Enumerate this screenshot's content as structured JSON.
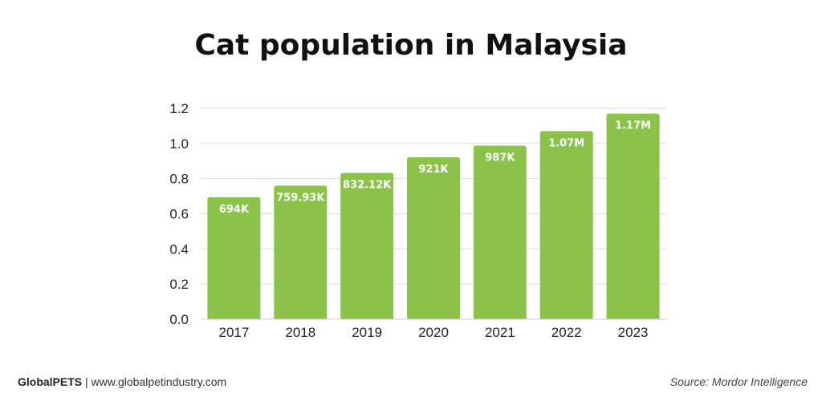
{
  "title": "Cat population in Malaysia",
  "footer": {
    "brand": "GlobalPETS",
    "separator": " | ",
    "website": "www.globalpetindustry.com",
    "source": "Source: Mordor Intelligence"
  },
  "colors": {
    "bar": "#8bc34a",
    "grid": "#dddddd",
    "bar_label": "#ffffff",
    "axis_text": "#222222"
  },
  "chart_data": {
    "type": "bar",
    "categories": [
      "2017",
      "2018",
      "2019",
      "2020",
      "2021",
      "2022",
      "2023"
    ],
    "values": [
      0.694,
      0.75993,
      0.83212,
      0.921,
      0.987,
      1.07,
      1.17
    ],
    "data_labels": [
      "694K",
      "759.93K",
      "832.12K",
      "921K",
      "987K",
      "1.07M",
      "1.17M"
    ],
    "title": "Cat population in Malaysia",
    "xlabel": "",
    "ylabel": "",
    "ylim": [
      0,
      1.2
    ],
    "yticks": [
      "0.0",
      "0.2",
      "0.4",
      "0.6",
      "0.8",
      "1.0",
      "1.2"
    ],
    "grid": true,
    "legend": "none"
  }
}
